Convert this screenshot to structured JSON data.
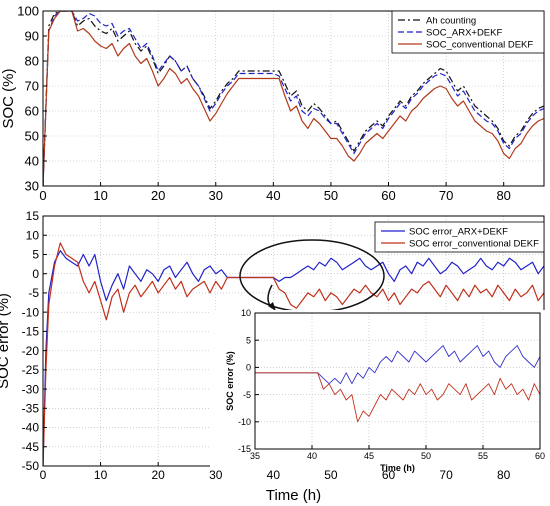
{
  "chart_data": [
    {
      "type": "line",
      "title": "",
      "xlabel": "",
      "ylabel": "SOC (%)",
      "xlim": [
        0,
        87
      ],
      "ylim": [
        30,
        100
      ],
      "xticks": [
        0,
        10,
        20,
        30,
        40,
        50,
        60,
        70,
        80
      ],
      "yticks": [
        30,
        40,
        50,
        60,
        70,
        80,
        90,
        100
      ],
      "grid": true,
      "legend": "top-right",
      "series": [
        {
          "name": "Ah counting",
          "color": "#111111",
          "style": "dashdot",
          "x": [
            0,
            1,
            2,
            3,
            4,
            5,
            6,
            7,
            8,
            9,
            10,
            11,
            12,
            13,
            14,
            15,
            16,
            17,
            18,
            19,
            20,
            21,
            22,
            23,
            24,
            25,
            26,
            27,
            28,
            29,
            30,
            31,
            32,
            33,
            34,
            35,
            36,
            37,
            38,
            39,
            40,
            41,
            42,
            43,
            44,
            45,
            46,
            47,
            48,
            49,
            50,
            51,
            52,
            53,
            54,
            55,
            56,
            57,
            58,
            59,
            60,
            61,
            62,
            63,
            64,
            65,
            66,
            67,
            68,
            69,
            70,
            71,
            72,
            73,
            74,
            75,
            76,
            77,
            78,
            79,
            80,
            81,
            82,
            83,
            84,
            85,
            86,
            87
          ],
          "y": [
            30,
            94,
            99,
            100,
            100,
            100,
            94,
            96,
            97,
            94,
            92,
            91,
            93,
            88,
            90,
            92,
            87,
            84,
            86,
            81,
            75,
            78,
            82,
            80,
            76,
            78,
            73,
            70,
            66,
            61,
            64,
            68,
            71,
            73,
            76,
            76,
            76,
            76,
            76,
            76,
            76,
            76,
            71,
            66,
            68,
            62,
            60,
            63,
            61,
            58,
            55,
            56,
            52,
            48,
            44,
            48,
            52,
            54,
            56,
            54,
            58,
            61,
            64,
            62,
            66,
            68,
            71,
            73,
            75,
            77,
            76,
            72,
            68,
            70,
            66,
            62,
            60,
            58,
            56,
            53,
            48,
            46,
            50,
            52,
            56,
            59,
            61,
            62
          ]
        },
        {
          "name": "SOC_ARX+DEKF",
          "color": "#2222cc",
          "style": "dashed",
          "x": [
            0,
            1,
            2,
            3,
            4,
            5,
            6,
            7,
            8,
            9,
            10,
            11,
            12,
            13,
            14,
            15,
            16,
            17,
            18,
            19,
            20,
            21,
            22,
            23,
            24,
            25,
            26,
            27,
            28,
            29,
            30,
            31,
            32,
            33,
            34,
            35,
            36,
            37,
            38,
            39,
            40,
            41,
            42,
            43,
            44,
            45,
            46,
            47,
            48,
            49,
            50,
            51,
            52,
            53,
            54,
            55,
            56,
            57,
            58,
            59,
            60,
            61,
            62,
            63,
            64,
            65,
            66,
            67,
            68,
            69,
            70,
            71,
            72,
            73,
            74,
            75,
            76,
            77,
            78,
            79,
            80,
            81,
            82,
            83,
            84,
            85,
            86,
            87
          ],
          "y": [
            30,
            92,
            98,
            100,
            100,
            100,
            96,
            97,
            99,
            98,
            95,
            94,
            95,
            90,
            92,
            93,
            89,
            85,
            87,
            82,
            76,
            79,
            82,
            80,
            76,
            78,
            73,
            70,
            65,
            60,
            63,
            67,
            70,
            72,
            75,
            75,
            75,
            75,
            75,
            75,
            75,
            74,
            69,
            64,
            66,
            60,
            58,
            61,
            60,
            57,
            55,
            55,
            51,
            47,
            43,
            47,
            51,
            53,
            55,
            53,
            57,
            60,
            63,
            61,
            65,
            67,
            70,
            72,
            74,
            75,
            74,
            70,
            66,
            68,
            64,
            60,
            58,
            56,
            55,
            52,
            47,
            45,
            49,
            51,
            55,
            58,
            60,
            61
          ]
        },
        {
          "name": "SOC_conventional DEKF",
          "color": "#b03a1a",
          "style": "solid",
          "x": [
            0,
            1,
            2,
            3,
            4,
            5,
            6,
            7,
            8,
            9,
            10,
            11,
            12,
            13,
            14,
            15,
            16,
            17,
            18,
            19,
            20,
            21,
            22,
            23,
            24,
            25,
            26,
            27,
            28,
            29,
            30,
            31,
            32,
            33,
            34,
            35,
            36,
            37,
            38,
            39,
            40,
            41,
            42,
            43,
            44,
            45,
            46,
            47,
            48,
            49,
            50,
            51,
            52,
            53,
            54,
            55,
            56,
            57,
            58,
            59,
            60,
            61,
            62,
            63,
            64,
            65,
            66,
            67,
            68,
            69,
            70,
            71,
            72,
            73,
            74,
            75,
            76,
            77,
            78,
            79,
            80,
            81,
            82,
            83,
            84,
            85,
            86,
            87
          ],
          "y": [
            30,
            92,
            97,
            100,
            100,
            100,
            92,
            93,
            91,
            88,
            86,
            85,
            87,
            82,
            85,
            87,
            82,
            79,
            81,
            76,
            70,
            73,
            77,
            75,
            71,
            73,
            69,
            66,
            61,
            56,
            59,
            63,
            67,
            70,
            73,
            73,
            73,
            73,
            73,
            73,
            73,
            73,
            66,
            60,
            62,
            56,
            53,
            57,
            55,
            52,
            49,
            49,
            46,
            42,
            40,
            43,
            47,
            49,
            51,
            49,
            52,
            55,
            58,
            56,
            60,
            62,
            65,
            67,
            69,
            70,
            69,
            65,
            62,
            64,
            60,
            56,
            54,
            52,
            51,
            48,
            43,
            41,
            45,
            47,
            51,
            54,
            56,
            57
          ]
        }
      ]
    },
    {
      "type": "line",
      "title": "",
      "xlabel": "Time (h)",
      "ylabel": "SOC error (%)",
      "xlim": [
        0,
        87
      ],
      "ylim": [
        -50,
        15
      ],
      "xticks": [
        0,
        10,
        20,
        30,
        40,
        50,
        60,
        70,
        80
      ],
      "yticks": [
        -50,
        -45,
        -40,
        -35,
        -30,
        -25,
        -20,
        -15,
        -10,
        -5,
        0,
        5,
        10,
        15
      ],
      "grid": true,
      "legend": "top-right",
      "series": [
        {
          "name": "SOC error_ARX+DEKF",
          "color": "#2222cc",
          "x": [
            0,
            0.5,
            1,
            2,
            3,
            4,
            5,
            6,
            7,
            8,
            9,
            10,
            11,
            12,
            13,
            14,
            15,
            16,
            17,
            18,
            19,
            20,
            21,
            22,
            23,
            24,
            25,
            26,
            27,
            28,
            29,
            30,
            31,
            32,
            33,
            34,
            35,
            36,
            37,
            38,
            39,
            40,
            41,
            42,
            43,
            44,
            45,
            46,
            47,
            48,
            49,
            50,
            51,
            52,
            53,
            54,
            55,
            56,
            57,
            58,
            59,
            60,
            61,
            62,
            63,
            64,
            65,
            66,
            67,
            68,
            69,
            70,
            71,
            72,
            73,
            74,
            75,
            76,
            77,
            78,
            79,
            80,
            81,
            82,
            83,
            84,
            85,
            86,
            87
          ],
          "y": [
            -50,
            -20,
            -5,
            3,
            6,
            4,
            3,
            2,
            5,
            2,
            5,
            -2,
            -7,
            -3,
            0,
            -4,
            2,
            0,
            -2,
            1,
            0,
            -2,
            1,
            2,
            -1,
            1,
            3,
            0,
            -2,
            1,
            2,
            0,
            1,
            -1,
            -1,
            -1,
            -1,
            -1,
            -1,
            -1,
            -1,
            -1,
            -2,
            -1,
            -1,
            0,
            1,
            2,
            1,
            3,
            2,
            4,
            3,
            1,
            2,
            3,
            4,
            2,
            1,
            2,
            3,
            0,
            -2,
            1,
            2,
            0,
            3,
            2,
            4,
            2,
            0,
            1,
            3,
            2,
            0,
            1,
            2,
            4,
            2,
            1,
            3,
            2,
            4,
            3,
            1,
            2,
            3,
            0,
            2
          ]
        },
        {
          "name": "SOC error_conventional DEKF",
          "color": "#c0301a",
          "x": [
            0,
            0.5,
            1,
            2,
            3,
            4,
            5,
            6,
            7,
            8,
            9,
            10,
            11,
            12,
            13,
            14,
            15,
            16,
            17,
            18,
            19,
            20,
            21,
            22,
            23,
            24,
            25,
            26,
            27,
            28,
            29,
            30,
            31,
            32,
            33,
            34,
            35,
            36,
            37,
            38,
            39,
            40,
            41,
            42,
            43,
            44,
            45,
            46,
            47,
            48,
            49,
            50,
            51,
            52,
            53,
            54,
            55,
            56,
            57,
            58,
            59,
            60,
            61,
            62,
            63,
            64,
            65,
            66,
            67,
            68,
            69,
            70,
            71,
            72,
            73,
            74,
            75,
            76,
            77,
            78,
            79,
            80,
            81,
            82,
            83,
            84,
            85,
            86,
            87
          ],
          "y": [
            -50,
            -25,
            -8,
            2,
            8,
            5,
            4,
            3,
            -2,
            -5,
            -2,
            -7,
            -12,
            -6,
            -4,
            -10,
            -5,
            -3,
            -6,
            -4,
            -2,
            -5,
            -3,
            -1,
            -4,
            -2,
            -6,
            -4,
            -3,
            -2,
            -5,
            -2,
            -4,
            -1,
            -1,
            -1,
            -1,
            -1,
            -1,
            -1,
            -1,
            -1,
            -4,
            -5,
            -8,
            -9,
            -7,
            -5,
            -6,
            -4,
            -7,
            -5,
            -6,
            -8,
            -6,
            -4,
            -5,
            -3,
            -5,
            -6,
            -4,
            -7,
            -5,
            -8,
            -6,
            -4,
            -5,
            -3,
            -2,
            -4,
            -6,
            -3,
            -5,
            -7,
            -4,
            -6,
            -3,
            -5,
            -4,
            -6,
            -3,
            -5,
            -7,
            -4,
            -6,
            -5,
            -3,
            -7,
            -5
          ]
        }
      ]
    },
    {
      "type": "line",
      "title": "",
      "xlabel": "Time (h)",
      "ylabel": "SOC error (%)",
      "xlim": [
        35,
        60
      ],
      "ylim": [
        -15,
        10
      ],
      "xticks": [
        35,
        40,
        45,
        50,
        55,
        60
      ],
      "yticks": [
        -15,
        -10,
        -5,
        0,
        5,
        10
      ],
      "grid": true,
      "inset": true,
      "series": [
        {
          "name": "SOC error_ARX+DEKF",
          "color": "#3333cc",
          "x": [
            35,
            36,
            37,
            38,
            39,
            40,
            40.5,
            41,
            41.5,
            42,
            42.5,
            43,
            43.5,
            44,
            44.5,
            45,
            45.5,
            46,
            46.5,
            47,
            47.5,
            48,
            48.5,
            49,
            49.5,
            50,
            50.5,
            51,
            51.5,
            52,
            52.5,
            53,
            53.5,
            54,
            54.5,
            55,
            55.5,
            56,
            56.5,
            57,
            57.5,
            58,
            58.5,
            59,
            59.5,
            60
          ],
          "y": [
            -1,
            -1,
            -1,
            -1,
            -1,
            -1,
            -1,
            -2,
            -3,
            -2,
            -3,
            -1,
            -3,
            -1,
            -2,
            0,
            -1,
            1,
            2,
            1,
            3,
            2,
            1,
            3,
            2,
            1,
            2,
            3,
            4,
            2,
            3,
            1,
            2,
            3,
            4,
            2,
            3,
            1,
            0,
            2,
            3,
            4,
            2,
            1,
            0,
            2
          ]
        },
        {
          "name": "SOC error_conventional DEKF",
          "color": "#c0301a",
          "x": [
            35,
            36,
            37,
            38,
            39,
            40,
            40.5,
            41,
            41.5,
            42,
            42.5,
            43,
            43.5,
            44,
            44.5,
            45,
            45.5,
            46,
            46.5,
            47,
            47.5,
            48,
            48.5,
            49,
            49.5,
            50,
            50.5,
            51,
            51.5,
            52,
            52.5,
            53,
            53.5,
            54,
            54.5,
            55,
            55.5,
            56,
            56.5,
            57,
            57.5,
            58,
            58.5,
            59,
            59.5,
            60
          ],
          "y": [
            -1,
            -1,
            -1,
            -1,
            -1,
            -1,
            -1,
            -4,
            -3,
            -5,
            -4,
            -6,
            -5,
            -10,
            -8,
            -9,
            -7,
            -5,
            -6,
            -4,
            -5,
            -6,
            -4,
            -5,
            -3,
            -5,
            -4,
            -6,
            -5,
            -3,
            -4,
            -5,
            -3,
            -6,
            -5,
            -4,
            -3,
            -5,
            -2,
            -4,
            -3,
            -5,
            -4,
            -6,
            -3,
            -5
          ]
        }
      ]
    }
  ]
}
